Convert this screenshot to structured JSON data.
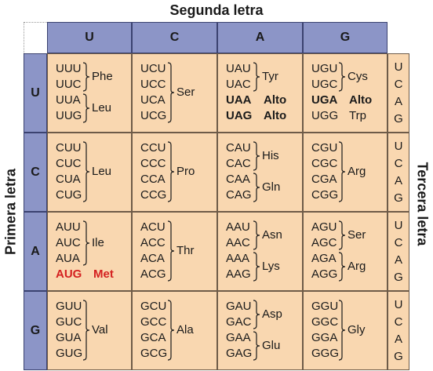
{
  "labels": {
    "second_letter": "Segunda letra",
    "first_letter": "Primera letra",
    "third_letter": "Tercera letra"
  },
  "bases": [
    "U",
    "C",
    "A",
    "G"
  ],
  "third_column": [
    "U",
    "C",
    "A",
    "G"
  ],
  "rows": [
    {
      "first": "U",
      "cells": [
        {
          "codons": [
            "UUU",
            "UUC",
            "UUA",
            "UUG"
          ],
          "groups": [
            {
              "span": [
                0,
                1
              ],
              "aa": "Phe"
            },
            {
              "span": [
                2,
                3
              ],
              "aa": "Leu"
            }
          ]
        },
        {
          "codons": [
            "UCU",
            "UCC",
            "UCA",
            "UCG"
          ],
          "groups": [
            {
              "span": [
                0,
                3
              ],
              "aa": "Ser"
            }
          ]
        },
        {
          "codons": [
            "UAU",
            "UAC",
            "UAA",
            "UAG"
          ],
          "groups": [
            {
              "span": [
                0,
                1
              ],
              "aa": "Tyr"
            },
            {
              "span": [
                2,
                2
              ],
              "aa": "Alto",
              "style": "stop"
            },
            {
              "span": [
                3,
                3
              ],
              "aa": "Alto",
              "style": "stop"
            }
          ]
        },
        {
          "codons": [
            "UGU",
            "UGC",
            "UGA",
            "UGG"
          ],
          "groups": [
            {
              "span": [
                0,
                1
              ],
              "aa": "Cys"
            },
            {
              "span": [
                2,
                2
              ],
              "aa": "Alto",
              "style": "stop"
            },
            {
              "span": [
                3,
                3
              ],
              "aa": "Trp"
            }
          ]
        }
      ]
    },
    {
      "first": "C",
      "cells": [
        {
          "codons": [
            "CUU",
            "CUC",
            "CUA",
            "CUG"
          ],
          "groups": [
            {
              "span": [
                0,
                3
              ],
              "aa": "Leu"
            }
          ]
        },
        {
          "codons": [
            "CCU",
            "CCC",
            "CCA",
            "CCG"
          ],
          "groups": [
            {
              "span": [
                0,
                3
              ],
              "aa": "Pro"
            }
          ]
        },
        {
          "codons": [
            "CAU",
            "CAC",
            "CAA",
            "CAG"
          ],
          "groups": [
            {
              "span": [
                0,
                1
              ],
              "aa": "His"
            },
            {
              "span": [
                2,
                3
              ],
              "aa": "Gln"
            }
          ]
        },
        {
          "codons": [
            "CGU",
            "CGC",
            "CGA",
            "CGG"
          ],
          "groups": [
            {
              "span": [
                0,
                3
              ],
              "aa": "Arg"
            }
          ]
        }
      ]
    },
    {
      "first": "A",
      "cells": [
        {
          "codons": [
            "AUU",
            "AUC",
            "AUA",
            "AUG"
          ],
          "groups": [
            {
              "span": [
                0,
                2
              ],
              "aa": "Ile"
            },
            {
              "span": [
                3,
                3
              ],
              "aa": "Met",
              "style": "start"
            }
          ]
        },
        {
          "codons": [
            "ACU",
            "ACC",
            "ACA",
            "ACG"
          ],
          "groups": [
            {
              "span": [
                0,
                3
              ],
              "aa": "Thr"
            }
          ]
        },
        {
          "codons": [
            "AAU",
            "AAC",
            "AAA",
            "AAG"
          ],
          "groups": [
            {
              "span": [
                0,
                1
              ],
              "aa": "Asn"
            },
            {
              "span": [
                2,
                3
              ],
              "aa": "Lys"
            }
          ]
        },
        {
          "codons": [
            "AGU",
            "AGC",
            "AGA",
            "AGG"
          ],
          "groups": [
            {
              "span": [
                0,
                1
              ],
              "aa": "Ser"
            },
            {
              "span": [
                2,
                3
              ],
              "aa": "Arg"
            }
          ]
        }
      ]
    },
    {
      "first": "G",
      "cells": [
        {
          "codons": [
            "GUU",
            "GUC",
            "GUA",
            "GUG"
          ],
          "groups": [
            {
              "span": [
                0,
                3
              ],
              "aa": "Val"
            }
          ]
        },
        {
          "codons": [
            "GCU",
            "GCC",
            "GCA",
            "GCG"
          ],
          "groups": [
            {
              "span": [
                0,
                3
              ],
              "aa": "Ala"
            }
          ]
        },
        {
          "codons": [
            "GAU",
            "GAC",
            "GAA",
            "GAG"
          ],
          "groups": [
            {
              "span": [
                0,
                1
              ],
              "aa": "Asp"
            },
            {
              "span": [
                2,
                3
              ],
              "aa": "Glu"
            }
          ]
        },
        {
          "codons": [
            "GGU",
            "GGC",
            "GGA",
            "GGG"
          ],
          "groups": [
            {
              "span": [
                0,
                3
              ],
              "aa": "Gly"
            }
          ]
        }
      ]
    }
  ],
  "colors": {
    "header_fill": "#8c95c7",
    "cell_fill": "#f9d7b0",
    "start_codon": "#d42020"
  }
}
